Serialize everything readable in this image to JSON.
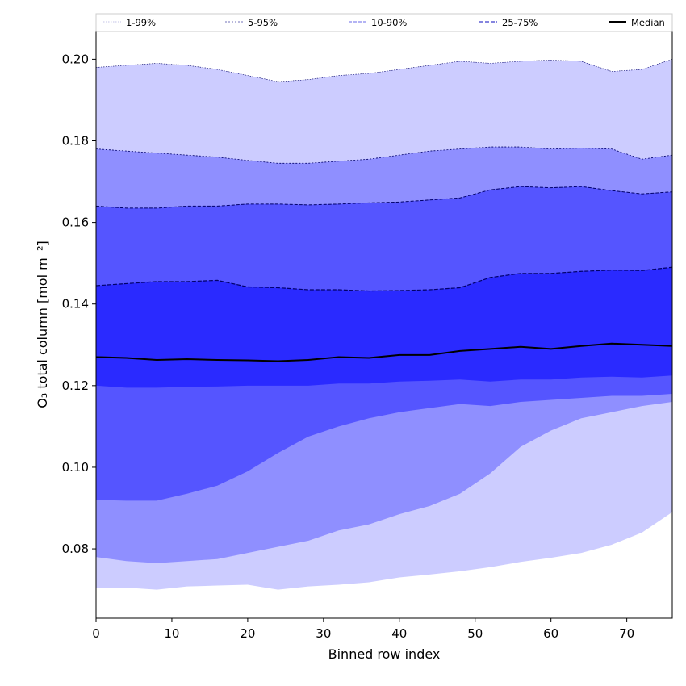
{
  "chart_data": {
    "type": "area",
    "title": "",
    "xlabel": "Binned row index",
    "ylabel": "O₃ total column [mol m⁻²]",
    "xlim": [
      0,
      76
    ],
    "ylim": [
      0.063,
      0.207
    ],
    "xticks": [
      0,
      10,
      20,
      30,
      40,
      50,
      60,
      70
    ],
    "yticks": [
      0.08,
      0.1,
      0.12,
      0.14,
      0.16,
      0.18,
      0.2
    ],
    "ytick_labels": [
      "0.08",
      "0.10",
      "0.12",
      "0.14",
      "0.16",
      "0.18",
      "0.20"
    ],
    "grid": false,
    "legend_position": "top",
    "colors": {
      "band_1_99": "#ccccff",
      "band_5_95": "#8f8fff",
      "band_10_90": "#5555ff",
      "band_25_75": "#2a2aff",
      "band_line": "#00006a",
      "median": "#000000"
    },
    "legend": [
      {
        "label": "1-99%",
        "style": "dotted-faint"
      },
      {
        "label": "5-95%",
        "style": "dotted"
      },
      {
        "label": "10-90%",
        "style": "dashed-light"
      },
      {
        "label": "25-75%",
        "style": "dashed"
      },
      {
        "label": "Median",
        "style": "solid"
      }
    ],
    "x": [
      0,
      4,
      8,
      12,
      16,
      20,
      24,
      28,
      32,
      36,
      40,
      44,
      48,
      52,
      56,
      60,
      64,
      68,
      72,
      76
    ],
    "series": [
      {
        "name": "1%",
        "values": [
          0.0705,
          0.0705,
          0.07,
          0.0708,
          0.071,
          0.0712,
          0.07,
          0.0708,
          0.0712,
          0.0718,
          0.073,
          0.0737,
          0.0745,
          0.0755,
          0.0768,
          0.0778,
          0.079,
          0.081,
          0.084,
          0.089
        ]
      },
      {
        "name": "5%",
        "values": [
          0.078,
          0.077,
          0.0765,
          0.077,
          0.0775,
          0.079,
          0.0805,
          0.082,
          0.0845,
          0.086,
          0.0885,
          0.0905,
          0.0935,
          0.0985,
          0.105,
          0.109,
          0.112,
          0.1135,
          0.115,
          0.116
        ]
      },
      {
        "name": "10%",
        "values": [
          0.092,
          0.0918,
          0.0918,
          0.0935,
          0.0955,
          0.099,
          0.1035,
          0.1075,
          0.11,
          0.112,
          0.1135,
          0.1145,
          0.1155,
          0.115,
          0.116,
          0.1165,
          0.117,
          0.1175,
          0.1175,
          0.118
        ]
      },
      {
        "name": "25%",
        "values": [
          0.12,
          0.1195,
          0.1195,
          0.1197,
          0.1198,
          0.12,
          0.12,
          0.12,
          0.1205,
          0.1205,
          0.121,
          0.1212,
          0.1215,
          0.121,
          0.1215,
          0.1215,
          0.122,
          0.1222,
          0.122,
          0.1225
        ]
      },
      {
        "name": "Median",
        "values": [
          0.127,
          0.1268,
          0.1263,
          0.1265,
          0.1263,
          0.1262,
          0.126,
          0.1263,
          0.127,
          0.1268,
          0.1275,
          0.1275,
          0.1285,
          0.129,
          0.1295,
          0.129,
          0.1297,
          0.1303,
          0.13,
          0.1297
        ]
      },
      {
        "name": "75%",
        "values": [
          0.1445,
          0.145,
          0.1455,
          0.1455,
          0.1458,
          0.1442,
          0.144,
          0.1435,
          0.1435,
          0.1432,
          0.1433,
          0.1435,
          0.144,
          0.1465,
          0.1475,
          0.1475,
          0.148,
          0.1483,
          0.1482,
          0.149
        ]
      },
      {
        "name": "90%",
        "values": [
          0.164,
          0.1635,
          0.1635,
          0.164,
          0.164,
          0.1645,
          0.1645,
          0.1643,
          0.1645,
          0.1648,
          0.165,
          0.1655,
          0.166,
          0.168,
          0.1688,
          0.1685,
          0.1688,
          0.1678,
          0.167,
          0.1675
        ]
      },
      {
        "name": "95%",
        "values": [
          0.178,
          0.1775,
          0.177,
          0.1765,
          0.176,
          0.1752,
          0.1745,
          0.1745,
          0.175,
          0.1755,
          0.1765,
          0.1775,
          0.178,
          0.1785,
          0.1785,
          0.178,
          0.1782,
          0.178,
          0.1755,
          0.1765
        ]
      },
      {
        "name": "99%",
        "values": [
          0.198,
          0.1985,
          0.199,
          0.1985,
          0.1975,
          0.196,
          0.1945,
          0.195,
          0.196,
          0.1965,
          0.1975,
          0.1985,
          0.1995,
          0.199,
          0.1995,
          0.1998,
          0.1995,
          0.197,
          0.1975,
          0.2
        ]
      }
    ]
  }
}
